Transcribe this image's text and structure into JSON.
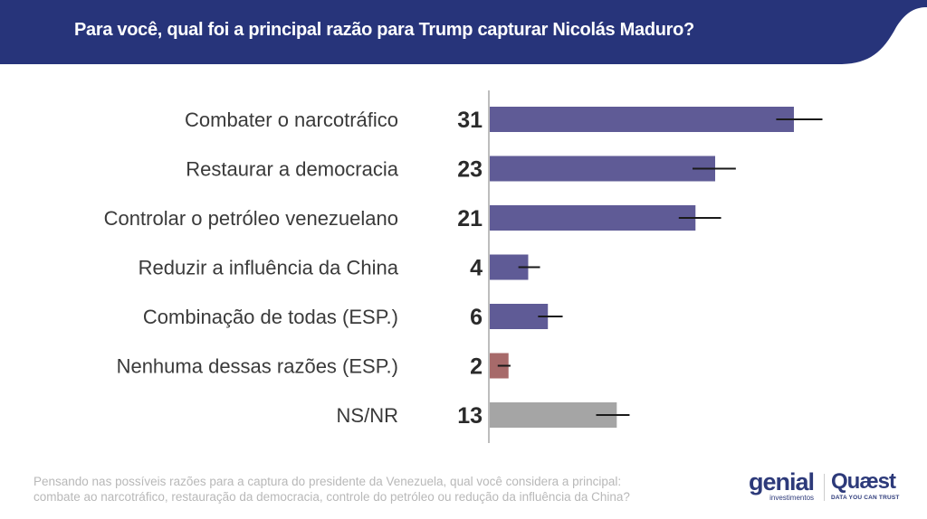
{
  "header": {
    "title": "Para você, qual foi a principal razão para Trump capturar Nicolás Maduro?"
  },
  "colors": {
    "header": "#27347a",
    "primary_bar": "#5f5b96",
    "none_bar": "#a76a6a",
    "dk_bar": "#a5a5a5",
    "error_bar": "#1a1a1a"
  },
  "chart_data": {
    "type": "bar",
    "orientation": "horizontal",
    "title": "Para você, qual foi a principal razão para Trump capturar Nicolás Maduro?",
    "categories": [
      "Combater o narcotráfico",
      "Restaurar a democracia",
      "Controlar o petróleo venezuelano",
      "Reduzir a influência da China",
      "Combinação de todas (ESP.)",
      "Nenhuma dessas razões (ESP.)",
      "NS/NR"
    ],
    "values": [
      31,
      23,
      21,
      4,
      6,
      2,
      13
    ],
    "value_labels": [
      "31",
      "23",
      "21",
      "4",
      "6",
      "2",
      "13"
    ],
    "error_bars": [
      [
        29.2,
        33.9
      ],
      [
        20.7,
        25.1
      ],
      [
        19.3,
        23.6
      ],
      [
        3.0,
        5.2
      ],
      [
        5.0,
        7.5
      ],
      [
        0.9,
        2.2
      ],
      [
        10.9,
        14.3
      ]
    ],
    "bar_colors": [
      "#5f5b96",
      "#5f5b96",
      "#5f5b96",
      "#5f5b96",
      "#5f5b96",
      "#a76a6a",
      "#a5a5a5"
    ],
    "xlim": [
      0,
      40
    ],
    "grid": false,
    "data_labels": true
  },
  "footnote": {
    "line1": "Pensando nas possíveis razões para a captura do presidente da Venezuela, qual você considera a principal:",
    "line2": "combate ao narcotráfico, restauração da democracia, controle do petróleo ou redução da influência da China?"
  },
  "logos": {
    "genial": "genial",
    "genial_sub": "investimentos",
    "quaest": "Quæst",
    "quaest_sub": "DATA YOU CAN TRUST"
  }
}
